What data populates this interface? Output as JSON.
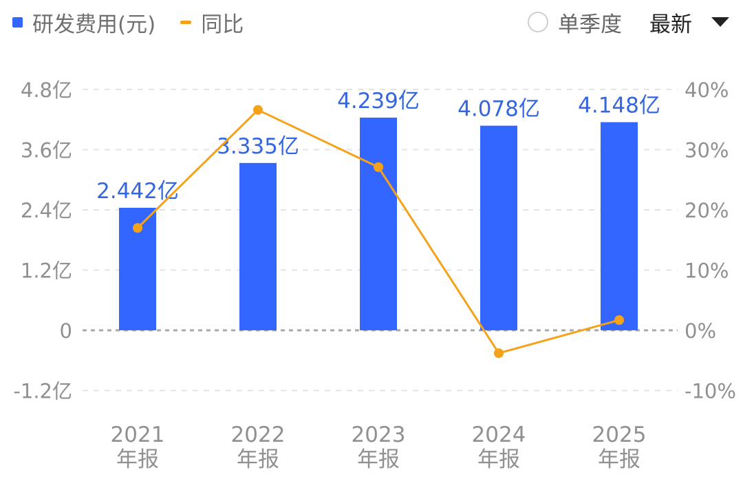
{
  "legend": {
    "bar_series": "研发费用(元)",
    "line_series": "同比"
  },
  "controls": {
    "quarter_label": "单季度",
    "sort_label": "最新"
  },
  "colors": {
    "bar": "#3366ff",
    "line": "#f5a21b",
    "bar_label": "#3366e0",
    "axis_text": "#909090"
  },
  "chart_data": {
    "type": "bar",
    "categories": [
      "2021\n年报",
      "2022\n年报",
      "2023\n年报",
      "2024\n年报",
      "2025\n年报"
    ],
    "series": [
      {
        "name": "研发费用(元)",
        "type": "bar",
        "axis": "left",
        "values": [
          2.442,
          3.335,
          4.239,
          4.078,
          4.148
        ],
        "labels": [
          "2.442亿",
          "3.335亿",
          "4.239亿",
          "4.078亿",
          "4.148亿"
        ]
      },
      {
        "name": "同比",
        "type": "line",
        "axis": "right",
        "values": [
          17.0,
          36.6,
          27.1,
          -3.8,
          1.7
        ]
      }
    ],
    "y_left": {
      "ticks": [
        4.8,
        3.6,
        2.4,
        1.2,
        0,
        -1.2
      ],
      "tick_labels": [
        "4.8亿",
        "3.6亿",
        "2.4亿",
        "1.2亿",
        "0",
        "-1.2亿"
      ],
      "range": [
        -1.2,
        4.8
      ]
    },
    "y_right": {
      "ticks": [
        40,
        30,
        20,
        10,
        0,
        -10
      ],
      "tick_labels": [
        "40%",
        "30%",
        "20%",
        "10%",
        "0%",
        "-10%"
      ],
      "range": [
        -10,
        40
      ]
    },
    "grid": true
  }
}
